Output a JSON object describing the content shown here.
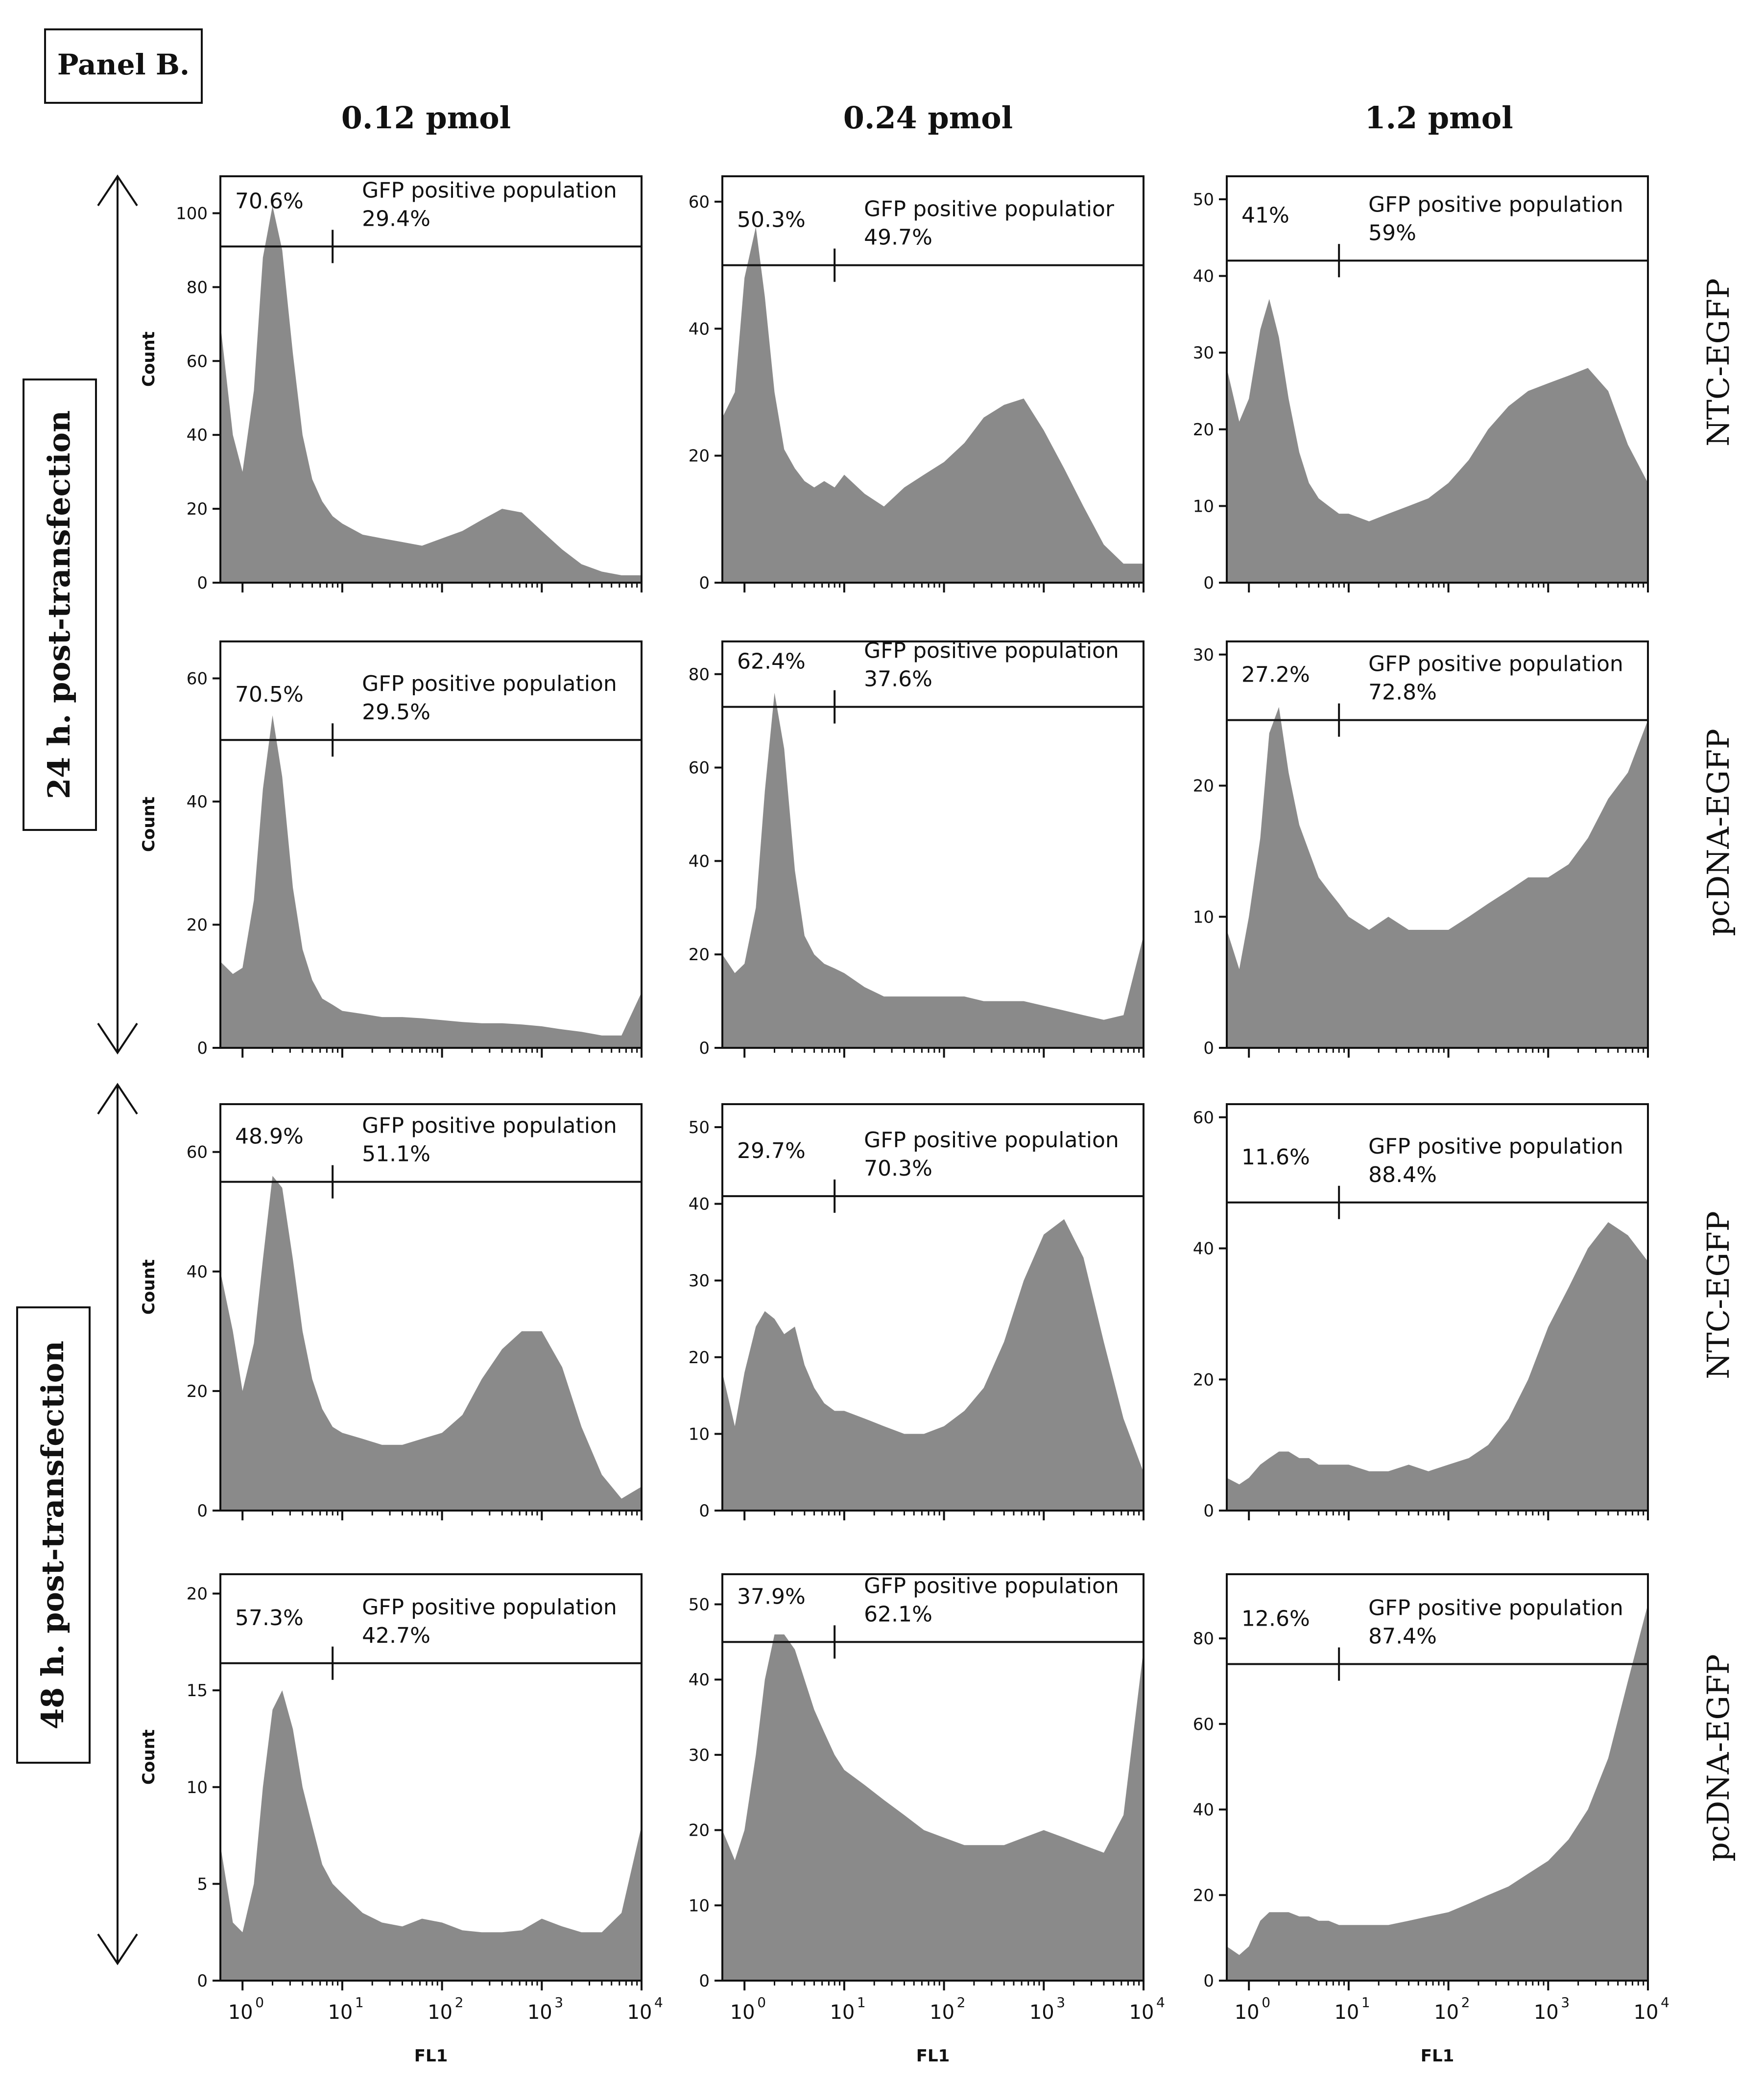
{
  "figure": {
    "panel_label": "Panel B.",
    "column_headers": [
      "0.12 pmol",
      "0.24 pmol",
      "1.2 pmol"
    ],
    "row_labels": [
      "NTC-EGFP",
      "pcDNA-EGFP",
      "NTC-EGFP",
      "pcDNA-EGFP"
    ],
    "group_labels": [
      "24 h. post-transfection",
      "48 h. post-transfection"
    ],
    "colors": {
      "histogram_fill": "#8a8a8a",
      "axis": "#111111",
      "background": "#ffffff"
    }
  },
  "chart_data": [
    {
      "type": "area",
      "row": 0,
      "col": 0,
      "xlabel": "",
      "ylabel": "Count",
      "xscale": "log",
      "xlim": [
        0.6,
        10000
      ],
      "ylim": [
        0,
        110
      ],
      "yticks": [
        0,
        20,
        40,
        60,
        80,
        100
      ],
      "gate_label": "GFP positive population",
      "neg_pct": "70.6%",
      "pos_pct": "29.4%",
      "gate_x": 8,
      "gate_y": 91,
      "x": [
        0.6,
        0.8,
        1.0,
        1.3,
        1.6,
        2.0,
        2.5,
        3.2,
        4.0,
        5.0,
        6.3,
        8.0,
        10,
        16,
        25,
        40,
        63,
        100,
        160,
        250,
        400,
        630,
        1000,
        1600,
        2500,
        4000,
        6300,
        10000
      ],
      "y": [
        70,
        40,
        30,
        52,
        88,
        102,
        90,
        62,
        40,
        28,
        22,
        18,
        16,
        13,
        12,
        11,
        10,
        12,
        14,
        17,
        20,
        19,
        14,
        9,
        5,
        3,
        2,
        2
      ]
    },
    {
      "type": "area",
      "row": 0,
      "col": 1,
      "xlabel": "",
      "ylabel": "",
      "xscale": "log",
      "xlim": [
        0.6,
        10000
      ],
      "ylim": [
        0,
        64
      ],
      "yticks": [
        0,
        20,
        40,
        60
      ],
      "gate_label": "GFP positive populatior",
      "neg_pct": "50.3%",
      "pos_pct": "49.7%",
      "gate_x": 8,
      "gate_y": 50,
      "x": [
        0.6,
        0.8,
        1.0,
        1.3,
        1.6,
        2.0,
        2.5,
        3.2,
        4.0,
        5.0,
        6.3,
        8.0,
        10,
        16,
        25,
        40,
        63,
        100,
        160,
        250,
        400,
        630,
        1000,
        1600,
        2500,
        4000,
        6300,
        10000
      ],
      "y": [
        26,
        30,
        48,
        56,
        45,
        30,
        21,
        18,
        16,
        15,
        16,
        15,
        17,
        14,
        12,
        15,
        17,
        19,
        22,
        26,
        28,
        29,
        24,
        18,
        12,
        6,
        3,
        3
      ]
    },
    {
      "type": "area",
      "row": 0,
      "col": 2,
      "xlabel": "",
      "ylabel": "",
      "xscale": "log",
      "xlim": [
        0.6,
        10000
      ],
      "ylim": [
        0,
        53
      ],
      "yticks": [
        0,
        10,
        20,
        30,
        40,
        50
      ],
      "gate_label": "GFP positive population",
      "neg_pct": "41%",
      "pos_pct": "59%",
      "gate_x": 8,
      "gate_y": 42,
      "x": [
        0.6,
        0.8,
        1.0,
        1.3,
        1.6,
        2.0,
        2.5,
        3.2,
        4.0,
        5.0,
        6.3,
        8.0,
        10,
        16,
        25,
        40,
        63,
        100,
        160,
        250,
        400,
        630,
        1000,
        1600,
        2500,
        4000,
        6300,
        10000
      ],
      "y": [
        28,
        21,
        24,
        33,
        37,
        32,
        24,
        17,
        13,
        11,
        10,
        9,
        9,
        8,
        9,
        10,
        11,
        13,
        16,
        20,
        23,
        25,
        26,
        27,
        28,
        25,
        18,
        13
      ]
    },
    {
      "type": "area",
      "row": 1,
      "col": 0,
      "xlabel": "",
      "ylabel": "Count",
      "xscale": "log",
      "xlim": [
        0.6,
        10000
      ],
      "ylim": [
        0,
        66
      ],
      "yticks": [
        0,
        20,
        40,
        60
      ],
      "gate_label": "GFP positive population",
      "neg_pct": "70.5%",
      "pos_pct": "29.5%",
      "gate_x": 8,
      "gate_y": 50,
      "x": [
        0.6,
        0.8,
        1.0,
        1.3,
        1.6,
        2.0,
        2.5,
        3.2,
        4.0,
        5.0,
        6.3,
        8.0,
        10,
        16,
        25,
        40,
        63,
        100,
        160,
        250,
        400,
        630,
        1000,
        1600,
        2500,
        4000,
        6300,
        10000
      ],
      "y": [
        14,
        12,
        13,
        24,
        42,
        54,
        44,
        26,
        16,
        11,
        8,
        7,
        6,
        5.5,
        5,
        5,
        4.8,
        4.5,
        4.2,
        4,
        4,
        3.8,
        3.5,
        3,
        2.6,
        2,
        2,
        9
      ]
    },
    {
      "type": "area",
      "row": 1,
      "col": 1,
      "xlabel": "",
      "ylabel": "",
      "xscale": "log",
      "xlim": [
        0.6,
        10000
      ],
      "ylim": [
        0,
        87
      ],
      "yticks": [
        0,
        20,
        40,
        60,
        80
      ],
      "gate_label": "GFP positive population",
      "neg_pct": "62.4%",
      "pos_pct": "37.6%",
      "gate_x": 8,
      "gate_y": 73,
      "x": [
        0.6,
        0.8,
        1.0,
        1.3,
        1.6,
        2.0,
        2.5,
        3.2,
        4.0,
        5.0,
        6.3,
        8.0,
        10,
        16,
        25,
        40,
        63,
        100,
        160,
        250,
        400,
        630,
        1000,
        1600,
        2500,
        4000,
        6300,
        10000
      ],
      "y": [
        20,
        16,
        18,
        30,
        55,
        76,
        64,
        38,
        24,
        20,
        18,
        17,
        16,
        13,
        11,
        11,
        11,
        11,
        11,
        10,
        10,
        10,
        9,
        8,
        7,
        6,
        7,
        24
      ]
    },
    {
      "type": "area",
      "row": 1,
      "col": 2,
      "xlabel": "",
      "ylabel": "",
      "xscale": "log",
      "xlim": [
        0.6,
        10000
      ],
      "ylim": [
        0,
        31
      ],
      "yticks": [
        0,
        10,
        20,
        30
      ],
      "gate_label": "GFP positive population",
      "neg_pct": "27.2%",
      "pos_pct": "72.8%",
      "gate_x": 8,
      "gate_y": 25,
      "x": [
        0.6,
        0.8,
        1.0,
        1.3,
        1.6,
        2.0,
        2.5,
        3.2,
        4.0,
        5.0,
        6.3,
        8.0,
        10,
        16,
        25,
        40,
        63,
        100,
        160,
        250,
        400,
        630,
        1000,
        1600,
        2500,
        4000,
        6300,
        10000
      ],
      "y": [
        9,
        6,
        10,
        16,
        24,
        26,
        21,
        17,
        15,
        13,
        12,
        11,
        10,
        9,
        10,
        9,
        9,
        9,
        10,
        11,
        12,
        13,
        13,
        14,
        16,
        19,
        21,
        25
      ]
    },
    {
      "type": "area",
      "row": 2,
      "col": 0,
      "xlabel": "",
      "ylabel": "Count",
      "xscale": "log",
      "xlim": [
        0.6,
        10000
      ],
      "ylim": [
        0,
        68
      ],
      "yticks": [
        0,
        20,
        40,
        60
      ],
      "gate_label": "GFP positive population",
      "neg_pct": "48.9%",
      "pos_pct": "51.1%",
      "gate_x": 8,
      "gate_y": 55,
      "x": [
        0.6,
        0.8,
        1.0,
        1.3,
        1.6,
        2.0,
        2.5,
        3.2,
        4.0,
        5.0,
        6.3,
        8.0,
        10,
        16,
        25,
        40,
        63,
        100,
        160,
        250,
        400,
        630,
        1000,
        1600,
        2500,
        4000,
        6300,
        10000
      ],
      "y": [
        40,
        30,
        20,
        28,
        42,
        56,
        54,
        42,
        30,
        22,
        17,
        14,
        13,
        12,
        11,
        11,
        12,
        13,
        16,
        22,
        27,
        30,
        30,
        24,
        14,
        6,
        2,
        4
      ]
    },
    {
      "type": "area",
      "row": 2,
      "col": 1,
      "xlabel": "",
      "ylabel": "",
      "xscale": "log",
      "xlim": [
        0.6,
        10000
      ],
      "ylim": [
        0,
        53
      ],
      "yticks": [
        0,
        10,
        20,
        30,
        40,
        50
      ],
      "gate_label": "GFP positive population",
      "neg_pct": "29.7%",
      "pos_pct": "70.3%",
      "gate_x": 8,
      "gate_y": 41,
      "x": [
        0.6,
        0.8,
        1.0,
        1.3,
        1.6,
        2.0,
        2.5,
        3.2,
        4.0,
        5.0,
        6.3,
        8.0,
        10,
        16,
        25,
        40,
        63,
        100,
        160,
        250,
        400,
        630,
        1000,
        1600,
        2500,
        4000,
        6300,
        10000
      ],
      "y": [
        18,
        11,
        18,
        24,
        26,
        25,
        23,
        24,
        19,
        16,
        14,
        13,
        13,
        12,
        11,
        10,
        10,
        11,
        13,
        16,
        22,
        30,
        36,
        38,
        33,
        22,
        12,
        5
      ]
    },
    {
      "type": "area",
      "row": 2,
      "col": 2,
      "xlabel": "",
      "ylabel": "",
      "xscale": "log",
      "xlim": [
        0.6,
        10000
      ],
      "ylim": [
        0,
        62
      ],
      "yticks": [
        0,
        20,
        40,
        60
      ],
      "gate_label": "GFP positive population",
      "neg_pct": "11.6%",
      "pos_pct": "88.4%",
      "gate_x": 8,
      "gate_y": 47,
      "x": [
        0.6,
        0.8,
        1.0,
        1.3,
        1.6,
        2.0,
        2.5,
        3.2,
        4.0,
        5.0,
        6.3,
        8.0,
        10,
        16,
        25,
        40,
        63,
        100,
        160,
        250,
        400,
        630,
        1000,
        1600,
        2500,
        4000,
        6300,
        10000
      ],
      "y": [
        5,
        4,
        5,
        7,
        8,
        9,
        9,
        8,
        8,
        7,
        7,
        7,
        7,
        6,
        6,
        7,
        6,
        7,
        8,
        10,
        14,
        20,
        28,
        34,
        40,
        44,
        42,
        38
      ]
    },
    {
      "type": "area",
      "row": 3,
      "col": 0,
      "xlabel": "FL1",
      "ylabel": "Count",
      "xscale": "log",
      "xlim": [
        0.6,
        10000
      ],
      "ylim": [
        0,
        21
      ],
      "yticks": [
        0,
        5,
        10,
        15,
        20
      ],
      "gate_label": "GFP positive population",
      "neg_pct": "57.3%",
      "pos_pct": "42.7%",
      "gate_x": 8,
      "gate_y": 16.4,
      "x": [
        0.6,
        0.8,
        1.0,
        1.3,
        1.6,
        2.0,
        2.5,
        3.2,
        4.0,
        5.0,
        6.3,
        8.0,
        10,
        16,
        25,
        40,
        63,
        100,
        160,
        250,
        400,
        630,
        1000,
        1600,
        2500,
        4000,
        6300,
        10000
      ],
      "y": [
        7,
        3,
        2.5,
        5,
        10,
        14,
        15,
        13,
        10,
        8,
        6,
        5,
        4.5,
        3.5,
        3,
        2.8,
        3.2,
        3,
        2.6,
        2.5,
        2.5,
        2.6,
        3.2,
        2.8,
        2.5,
        2.5,
        3.5,
        8
      ]
    },
    {
      "type": "area",
      "row": 3,
      "col": 1,
      "xlabel": "FL1",
      "ylabel": "",
      "xscale": "log",
      "xlim": [
        0.6,
        10000
      ],
      "ylim": [
        0,
        54
      ],
      "yticks": [
        0,
        10,
        20,
        30,
        40,
        50
      ],
      "gate_label": "GFP positive population",
      "neg_pct": "37.9%",
      "pos_pct": "62.1%",
      "gate_x": 8,
      "gate_y": 45,
      "x": [
        0.6,
        0.8,
        1.0,
        1.3,
        1.6,
        2.0,
        2.5,
        3.2,
        4.0,
        5.0,
        6.3,
        8.0,
        10,
        16,
        25,
        40,
        63,
        100,
        160,
        250,
        400,
        630,
        1000,
        1600,
        2500,
        4000,
        6300,
        10000
      ],
      "y": [
        20,
        16,
        20,
        30,
        40,
        46,
        46,
        44,
        40,
        36,
        33,
        30,
        28,
        26,
        24,
        22,
        20,
        19,
        18,
        18,
        18,
        19,
        20,
        19,
        18,
        17,
        22,
        44
      ]
    },
    {
      "type": "area",
      "row": 3,
      "col": 2,
      "xlabel": "FL1",
      "ylabel": "",
      "xscale": "log",
      "xlim": [
        0.6,
        10000
      ],
      "ylim": [
        0,
        95
      ],
      "yticks": [
        0,
        20,
        40,
        60,
        80
      ],
      "gate_label": "GFP positive population",
      "neg_pct": "12.6%",
      "pos_pct": "87.4%",
      "gate_x": 8,
      "gate_y": 74,
      "x": [
        0.6,
        0.8,
        1.0,
        1.3,
        1.6,
        2.0,
        2.5,
        3.2,
        4.0,
        5.0,
        6.3,
        8.0,
        10,
        16,
        25,
        40,
        63,
        100,
        160,
        250,
        400,
        630,
        1000,
        1600,
        2500,
        4000,
        6300,
        10000
      ],
      "y": [
        8,
        6,
        8,
        14,
        16,
        16,
        16,
        15,
        15,
        14,
        14,
        13,
        13,
        13,
        13,
        14,
        15,
        16,
        18,
        20,
        22,
        25,
        28,
        33,
        40,
        52,
        70,
        88
      ]
    }
  ]
}
